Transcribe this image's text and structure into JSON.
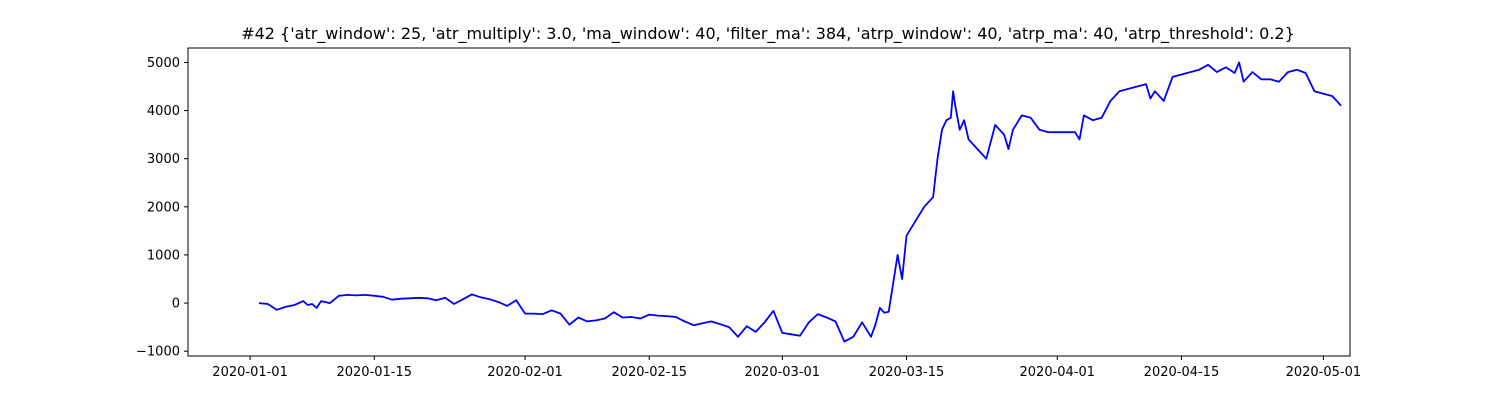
{
  "chart_data": {
    "type": "line",
    "title": "#42 {'atr_window': 25, 'atr_multiply': 3.0, 'ma_window': 40, 'filter_ma': 384, 'atrp_window': 40, 'atrp_ma': 40, 'atrp_threshold': 0.2}",
    "xlabel": "",
    "ylabel": "",
    "x_axis_type": "date",
    "xlim": [
      "2019-12-25",
      "2020-05-04"
    ],
    "ylim": [
      -1100,
      5300
    ],
    "x_ticks": [
      {
        "value": "2020-01-01",
        "label": "2020-01-01"
      },
      {
        "value": "2020-01-15",
        "label": "2020-01-15"
      },
      {
        "value": "2020-02-01",
        "label": "2020-02-01"
      },
      {
        "value": "2020-02-15",
        "label": "2020-02-15"
      },
      {
        "value": "2020-03-01",
        "label": "2020-03-01"
      },
      {
        "value": "2020-03-15",
        "label": "2020-03-15"
      },
      {
        "value": "2020-04-01",
        "label": "2020-04-01"
      },
      {
        "value": "2020-04-15",
        "label": "2020-04-15"
      },
      {
        "value": "2020-05-01",
        "label": "2020-05-01"
      }
    ],
    "y_ticks": [
      {
        "value": -1000,
        "label": "−1000"
      },
      {
        "value": 0,
        "label": "0"
      },
      {
        "value": 1000,
        "label": "1000"
      },
      {
        "value": 2000,
        "label": "2000"
      },
      {
        "value": 3000,
        "label": "3000"
      },
      {
        "value": 4000,
        "label": "4000"
      },
      {
        "value": 5000,
        "label": "5000"
      }
    ],
    "grid": false,
    "legend": "none",
    "series": [
      {
        "color": "#0000ff",
        "points": [
          [
            "2020-01-02",
            0
          ],
          [
            "2020-01-03",
            -20
          ],
          [
            "2020-01-04",
            -140
          ],
          [
            "2020-01-05",
            -80
          ],
          [
            "2020-01-06",
            -40
          ],
          [
            "2020-01-07",
            40
          ],
          [
            "2020-01-07T12:00",
            -40
          ],
          [
            "2020-01-08",
            -20
          ],
          [
            "2020-01-08T12:00",
            -100
          ],
          [
            "2020-01-09",
            40
          ],
          [
            "2020-01-10",
            0
          ],
          [
            "2020-01-11",
            150
          ],
          [
            "2020-01-12",
            170
          ],
          [
            "2020-01-13",
            160
          ],
          [
            "2020-01-14",
            170
          ],
          [
            "2020-01-15",
            150
          ],
          [
            "2020-01-16",
            130
          ],
          [
            "2020-01-17",
            70
          ],
          [
            "2020-01-18",
            90
          ],
          [
            "2020-01-19",
            100
          ],
          [
            "2020-01-20",
            110
          ],
          [
            "2020-01-21",
            100
          ],
          [
            "2020-01-22",
            60
          ],
          [
            "2020-01-23",
            110
          ],
          [
            "2020-01-24",
            -20
          ],
          [
            "2020-01-25",
            80
          ],
          [
            "2020-01-26",
            180
          ],
          [
            "2020-01-27",
            120
          ],
          [
            "2020-01-28",
            80
          ],
          [
            "2020-01-29",
            20
          ],
          [
            "2020-01-30",
            -60
          ],
          [
            "2020-01-31",
            60
          ],
          [
            "2020-02-01",
            -220
          ],
          [
            "2020-02-02",
            -220
          ],
          [
            "2020-02-03",
            -230
          ],
          [
            "2020-02-04",
            -150
          ],
          [
            "2020-02-05",
            -220
          ],
          [
            "2020-02-06",
            -450
          ],
          [
            "2020-02-07",
            -300
          ],
          [
            "2020-02-08",
            -380
          ],
          [
            "2020-02-09",
            -360
          ],
          [
            "2020-02-10",
            -320
          ],
          [
            "2020-02-11",
            -190
          ],
          [
            "2020-02-12",
            -300
          ],
          [
            "2020-02-13",
            -290
          ],
          [
            "2020-02-14",
            -320
          ],
          [
            "2020-02-15",
            -240
          ],
          [
            "2020-02-16",
            -260
          ],
          [
            "2020-02-17",
            -270
          ],
          [
            "2020-02-18",
            -290
          ],
          [
            "2020-02-19",
            -380
          ],
          [
            "2020-02-20",
            -460
          ],
          [
            "2020-02-21",
            -420
          ],
          [
            "2020-02-22",
            -380
          ],
          [
            "2020-02-23",
            -440
          ],
          [
            "2020-02-24",
            -500
          ],
          [
            "2020-02-25",
            -700
          ],
          [
            "2020-02-26",
            -480
          ],
          [
            "2020-02-27",
            -600
          ],
          [
            "2020-02-28",
            -400
          ],
          [
            "2020-02-29",
            -160
          ],
          [
            "2020-03-01",
            -620
          ],
          [
            "2020-03-02",
            -650
          ],
          [
            "2020-03-03",
            -680
          ],
          [
            "2020-03-04",
            -400
          ],
          [
            "2020-03-05",
            -230
          ],
          [
            "2020-03-06",
            -300
          ],
          [
            "2020-03-07",
            -380
          ],
          [
            "2020-03-08",
            -800
          ],
          [
            "2020-03-09",
            -700
          ],
          [
            "2020-03-10",
            -400
          ],
          [
            "2020-03-11",
            -700
          ],
          [
            "2020-03-11T12:00",
            -450
          ],
          [
            "2020-03-12",
            -100
          ],
          [
            "2020-03-12T12:00",
            -200
          ],
          [
            "2020-03-13",
            -180
          ],
          [
            "2020-03-14",
            1000
          ],
          [
            "2020-03-14T12:00",
            500
          ],
          [
            "2020-03-15",
            1400
          ],
          [
            "2020-03-17",
            2000
          ],
          [
            "2020-03-18",
            2200
          ],
          [
            "2020-03-18T12:00",
            3000
          ],
          [
            "2020-03-19",
            3600
          ],
          [
            "2020-03-19T12:00",
            3800
          ],
          [
            "2020-03-20",
            3850
          ],
          [
            "2020-03-20T06:00",
            4400
          ],
          [
            "2020-03-20T12:00",
            4100
          ],
          [
            "2020-03-21",
            3600
          ],
          [
            "2020-03-21T12:00",
            3800
          ],
          [
            "2020-03-22",
            3400
          ],
          [
            "2020-03-23",
            3200
          ],
          [
            "2020-03-24",
            3000
          ],
          [
            "2020-03-25",
            3700
          ],
          [
            "2020-03-26",
            3500
          ],
          [
            "2020-03-26T12:00",
            3200
          ],
          [
            "2020-03-27",
            3600
          ],
          [
            "2020-03-28",
            3900
          ],
          [
            "2020-03-29",
            3850
          ],
          [
            "2020-03-30",
            3600
          ],
          [
            "2020-03-31",
            3550
          ],
          [
            "2020-04-01",
            3550
          ],
          [
            "2020-04-02",
            3550
          ],
          [
            "2020-04-03",
            3550
          ],
          [
            "2020-04-03T12:00",
            3400
          ],
          [
            "2020-04-04",
            3900
          ],
          [
            "2020-04-05",
            3800
          ],
          [
            "2020-04-06",
            3850
          ],
          [
            "2020-04-07",
            4200
          ],
          [
            "2020-04-08",
            4400
          ],
          [
            "2020-04-09",
            4450
          ],
          [
            "2020-04-11",
            4550
          ],
          [
            "2020-04-11T12:00",
            4250
          ],
          [
            "2020-04-12",
            4400
          ],
          [
            "2020-04-13",
            4200
          ],
          [
            "2020-04-14",
            4700
          ],
          [
            "2020-04-17",
            4850
          ],
          [
            "2020-04-18",
            4950
          ],
          [
            "2020-04-19",
            4800
          ],
          [
            "2020-04-20",
            4900
          ],
          [
            "2020-04-21",
            4780
          ],
          [
            "2020-04-21T12:00",
            5000
          ],
          [
            "2020-04-22",
            4600
          ],
          [
            "2020-04-23",
            4800
          ],
          [
            "2020-04-24",
            4650
          ],
          [
            "2020-04-25",
            4650
          ],
          [
            "2020-04-26",
            4600
          ],
          [
            "2020-04-27",
            4800
          ],
          [
            "2020-04-28",
            4850
          ],
          [
            "2020-04-29",
            4780
          ],
          [
            "2020-04-30",
            4400
          ],
          [
            "2020-05-01",
            4350
          ],
          [
            "2020-05-02",
            4300
          ],
          [
            "2020-05-02T12:00",
            4200
          ],
          [
            "2020-05-03",
            4100
          ]
        ]
      }
    ]
  }
}
